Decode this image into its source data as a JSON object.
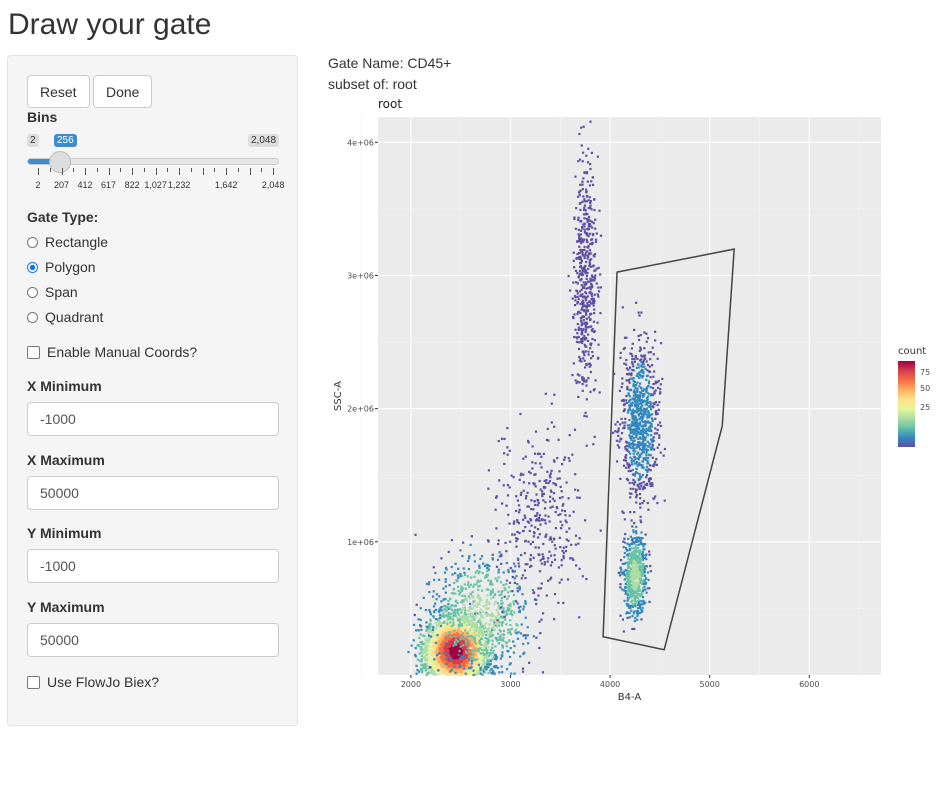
{
  "title": "Draw your gate",
  "buttons": {
    "reset": "Reset",
    "done": "Done"
  },
  "bins": {
    "label": "Bins",
    "min": "2",
    "max": "2,048",
    "value": "256",
    "fraction": 0.124,
    "ticks": [
      "2",
      "207",
      "412",
      "617",
      "822",
      "1,027",
      "1,232",
      "1,642",
      "2,048"
    ]
  },
  "gate_type": {
    "label": "Gate Type:",
    "options": [
      "Rectangle",
      "Polygon",
      "Span",
      "Quadrant"
    ],
    "selected": "Polygon"
  },
  "manual_coords": {
    "label": "Enable Manual Coords?",
    "checked": false
  },
  "fields": [
    {
      "label": "X Minimum",
      "value": "-1000"
    },
    {
      "label": "X Maximum",
      "value": "50000"
    },
    {
      "label": "Y Minimum",
      "value": "-1000"
    },
    {
      "label": "Y Maximum",
      "value": "50000"
    }
  ],
  "biex": {
    "label": "Use FlowJo Biex?",
    "checked": false
  },
  "gate_info": {
    "name": "Gate Name: CD45+",
    "subset": "subset of: root"
  },
  "chart_data": {
    "type": "hexbin",
    "title": "root",
    "xlabel": "B4-A",
    "ylabel": "SSC-A",
    "xlim": [
      1670,
      6720
    ],
    "ylim": [
      0,
      4190000
    ],
    "xticks": [
      {
        "v": 2000,
        "t": "2000"
      },
      {
        "v": 3000,
        "t": "3000"
      },
      {
        "v": 4000,
        "t": "4000"
      },
      {
        "v": 5000,
        "t": "5000"
      },
      {
        "v": 6000,
        "t": "6000"
      }
    ],
    "yticks": [
      {
        "v": 1000000,
        "t": "1e+06"
      },
      {
        "v": 2000000,
        "t": "2e+06"
      },
      {
        "v": 3000000,
        "t": "3e+06"
      },
      {
        "v": 4000000,
        "t": "4e+06"
      }
    ],
    "legend": {
      "title": "count",
      "ticks": [
        "25",
        "50",
        "75"
      ],
      "placement": "right",
      "colors": [
        "#5e4fa2",
        "#3288bd",
        "#66c2a5",
        "#abdda4",
        "#e6f598",
        "#fee08b",
        "#fdae61",
        "#f46d43",
        "#d53e4f",
        "#9e0142"
      ]
    },
    "gate_polygon": [
      [
        4070,
        3025000
      ],
      [
        5246,
        3198000
      ],
      [
        5126,
        1870000
      ],
      [
        4543,
        190000
      ],
      [
        3930,
        287000
      ]
    ],
    "background": "#ebebeb"
  }
}
